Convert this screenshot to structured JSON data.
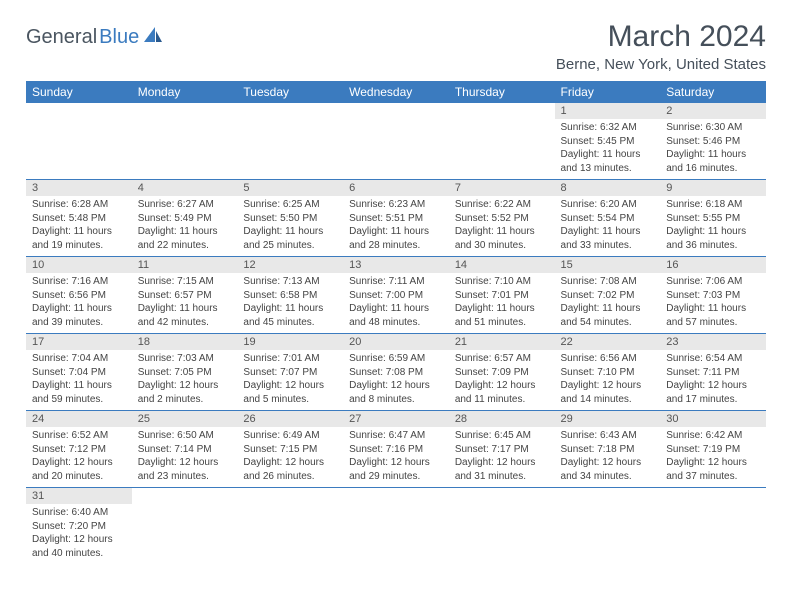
{
  "logo": {
    "text_dark": "General",
    "text_blue": "Blue"
  },
  "title": "March 2024",
  "subtitle": "Berne, New York, United States",
  "colors": {
    "header_bg": "#3b7bbf",
    "header_fg": "#ffffff",
    "daynum_bg": "#e8e8e8",
    "rule": "#3b7bbf"
  },
  "day_headers": [
    "Sunday",
    "Monday",
    "Tuesday",
    "Wednesday",
    "Thursday",
    "Friday",
    "Saturday"
  ],
  "weeks": [
    [
      null,
      null,
      null,
      null,
      null,
      {
        "n": "1",
        "sr": "Sunrise: 6:32 AM",
        "ss": "Sunset: 5:45 PM",
        "dl": "Daylight: 11 hours and 13 minutes."
      },
      {
        "n": "2",
        "sr": "Sunrise: 6:30 AM",
        "ss": "Sunset: 5:46 PM",
        "dl": "Daylight: 11 hours and 16 minutes."
      }
    ],
    [
      {
        "n": "3",
        "sr": "Sunrise: 6:28 AM",
        "ss": "Sunset: 5:48 PM",
        "dl": "Daylight: 11 hours and 19 minutes."
      },
      {
        "n": "4",
        "sr": "Sunrise: 6:27 AM",
        "ss": "Sunset: 5:49 PM",
        "dl": "Daylight: 11 hours and 22 minutes."
      },
      {
        "n": "5",
        "sr": "Sunrise: 6:25 AM",
        "ss": "Sunset: 5:50 PM",
        "dl": "Daylight: 11 hours and 25 minutes."
      },
      {
        "n": "6",
        "sr": "Sunrise: 6:23 AM",
        "ss": "Sunset: 5:51 PM",
        "dl": "Daylight: 11 hours and 28 minutes."
      },
      {
        "n": "7",
        "sr": "Sunrise: 6:22 AM",
        "ss": "Sunset: 5:52 PM",
        "dl": "Daylight: 11 hours and 30 minutes."
      },
      {
        "n": "8",
        "sr": "Sunrise: 6:20 AM",
        "ss": "Sunset: 5:54 PM",
        "dl": "Daylight: 11 hours and 33 minutes."
      },
      {
        "n": "9",
        "sr": "Sunrise: 6:18 AM",
        "ss": "Sunset: 5:55 PM",
        "dl": "Daylight: 11 hours and 36 minutes."
      }
    ],
    [
      {
        "n": "10",
        "sr": "Sunrise: 7:16 AM",
        "ss": "Sunset: 6:56 PM",
        "dl": "Daylight: 11 hours and 39 minutes."
      },
      {
        "n": "11",
        "sr": "Sunrise: 7:15 AM",
        "ss": "Sunset: 6:57 PM",
        "dl": "Daylight: 11 hours and 42 minutes."
      },
      {
        "n": "12",
        "sr": "Sunrise: 7:13 AM",
        "ss": "Sunset: 6:58 PM",
        "dl": "Daylight: 11 hours and 45 minutes."
      },
      {
        "n": "13",
        "sr": "Sunrise: 7:11 AM",
        "ss": "Sunset: 7:00 PM",
        "dl": "Daylight: 11 hours and 48 minutes."
      },
      {
        "n": "14",
        "sr": "Sunrise: 7:10 AM",
        "ss": "Sunset: 7:01 PM",
        "dl": "Daylight: 11 hours and 51 minutes."
      },
      {
        "n": "15",
        "sr": "Sunrise: 7:08 AM",
        "ss": "Sunset: 7:02 PM",
        "dl": "Daylight: 11 hours and 54 minutes."
      },
      {
        "n": "16",
        "sr": "Sunrise: 7:06 AM",
        "ss": "Sunset: 7:03 PM",
        "dl": "Daylight: 11 hours and 57 minutes."
      }
    ],
    [
      {
        "n": "17",
        "sr": "Sunrise: 7:04 AM",
        "ss": "Sunset: 7:04 PM",
        "dl": "Daylight: 11 hours and 59 minutes."
      },
      {
        "n": "18",
        "sr": "Sunrise: 7:03 AM",
        "ss": "Sunset: 7:05 PM",
        "dl": "Daylight: 12 hours and 2 minutes."
      },
      {
        "n": "19",
        "sr": "Sunrise: 7:01 AM",
        "ss": "Sunset: 7:07 PM",
        "dl": "Daylight: 12 hours and 5 minutes."
      },
      {
        "n": "20",
        "sr": "Sunrise: 6:59 AM",
        "ss": "Sunset: 7:08 PM",
        "dl": "Daylight: 12 hours and 8 minutes."
      },
      {
        "n": "21",
        "sr": "Sunrise: 6:57 AM",
        "ss": "Sunset: 7:09 PM",
        "dl": "Daylight: 12 hours and 11 minutes."
      },
      {
        "n": "22",
        "sr": "Sunrise: 6:56 AM",
        "ss": "Sunset: 7:10 PM",
        "dl": "Daylight: 12 hours and 14 minutes."
      },
      {
        "n": "23",
        "sr": "Sunrise: 6:54 AM",
        "ss": "Sunset: 7:11 PM",
        "dl": "Daylight: 12 hours and 17 minutes."
      }
    ],
    [
      {
        "n": "24",
        "sr": "Sunrise: 6:52 AM",
        "ss": "Sunset: 7:12 PM",
        "dl": "Daylight: 12 hours and 20 minutes."
      },
      {
        "n": "25",
        "sr": "Sunrise: 6:50 AM",
        "ss": "Sunset: 7:14 PM",
        "dl": "Daylight: 12 hours and 23 minutes."
      },
      {
        "n": "26",
        "sr": "Sunrise: 6:49 AM",
        "ss": "Sunset: 7:15 PM",
        "dl": "Daylight: 12 hours and 26 minutes."
      },
      {
        "n": "27",
        "sr": "Sunrise: 6:47 AM",
        "ss": "Sunset: 7:16 PM",
        "dl": "Daylight: 12 hours and 29 minutes."
      },
      {
        "n": "28",
        "sr": "Sunrise: 6:45 AM",
        "ss": "Sunset: 7:17 PM",
        "dl": "Daylight: 12 hours and 31 minutes."
      },
      {
        "n": "29",
        "sr": "Sunrise: 6:43 AM",
        "ss": "Sunset: 7:18 PM",
        "dl": "Daylight: 12 hours and 34 minutes."
      },
      {
        "n": "30",
        "sr": "Sunrise: 6:42 AM",
        "ss": "Sunset: 7:19 PM",
        "dl": "Daylight: 12 hours and 37 minutes."
      }
    ],
    [
      {
        "n": "31",
        "sr": "Sunrise: 6:40 AM",
        "ss": "Sunset: 7:20 PM",
        "dl": "Daylight: 12 hours and 40 minutes."
      },
      null,
      null,
      null,
      null,
      null,
      null
    ]
  ]
}
